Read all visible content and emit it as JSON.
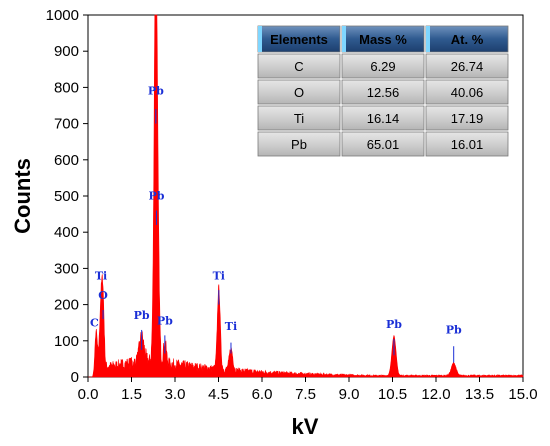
{
  "chart_data": {
    "type": "line",
    "xlabel": "kV",
    "ylabel": "Counts",
    "xlim": [
      0.0,
      15.0
    ],
    "ylim": [
      0,
      1000
    ],
    "xticks": [
      "0.0",
      "1.5",
      "3.0",
      "4.5",
      "6.0",
      "7.5",
      "9.0",
      "10.5",
      "12.0",
      "13.5",
      "15.0"
    ],
    "yticks": [
      "0",
      "100",
      "200",
      "300",
      "400",
      "500",
      "600",
      "700",
      "800",
      "900",
      "1000"
    ],
    "line_color": "#ff0000",
    "label_color": "#1a2fd6",
    "peaks": [
      {
        "x": 0.28,
        "y": 110,
        "width": 0.04
      },
      {
        "x": 0.45,
        "y": 180,
        "width": 0.05
      },
      {
        "x": 0.52,
        "y": 155,
        "width": 0.04
      },
      {
        "x": 1.85,
        "y": 70,
        "width": 0.08
      },
      {
        "x": 2.3,
        "y": 440,
        "width": 0.05
      },
      {
        "x": 2.34,
        "y": 735,
        "width": 0.04
      },
      {
        "x": 2.4,
        "y": 420,
        "width": 0.05
      },
      {
        "x": 2.65,
        "y": 60,
        "width": 0.05
      },
      {
        "x": 4.51,
        "y": 225,
        "width": 0.05
      },
      {
        "x": 4.93,
        "y": 60,
        "width": 0.06
      },
      {
        "x": 10.55,
        "y": 110,
        "width": 0.07
      },
      {
        "x": 12.61,
        "y": 35,
        "width": 0.08
      }
    ],
    "annotations": [
      {
        "text": "Pb",
        "x": 2.34,
        "y": 780,
        "line_top": 740,
        "line_bottom": 700
      },
      {
        "text": "Pb",
        "x": 2.36,
        "y": 490,
        "line_top": 460,
        "line_bottom": 420
      },
      {
        "text": "Ti",
        "x": 4.51,
        "y": 270,
        "line_top": 240,
        "line_bottom": 200
      },
      {
        "text": "Ti",
        "x": 0.45,
        "y": 270,
        "line_top": 0,
        "line_bottom": 0
      },
      {
        "text": "O",
        "x": 0.52,
        "y": 215,
        "line_top": 185,
        "line_bottom": 160
      },
      {
        "text": "C",
        "x": 0.22,
        "y": 140,
        "line_top": 0,
        "line_bottom": 0
      },
      {
        "text": "Pb",
        "x": 1.85,
        "y": 160,
        "line_top": 130,
        "line_bottom": 75
      },
      {
        "text": "Pb",
        "x": 2.65,
        "y": 145,
        "line_top": 115,
        "line_bottom": 65
      },
      {
        "text": "Ti",
        "x": 4.93,
        "y": 130,
        "line_top": 95,
        "line_bottom": 65
      },
      {
        "text": "Pb",
        "x": 10.55,
        "y": 135,
        "line_top": 105,
        "line_bottom": 60
      },
      {
        "text": "Pb",
        "x": 12.61,
        "y": 120,
        "line_top": 85,
        "line_bottom": 40
      }
    ]
  },
  "table": {
    "headers": [
      "Elements",
      "Mass %",
      "At. %"
    ],
    "rows": [
      [
        "C",
        "6.29",
        "26.74"
      ],
      [
        "O",
        "12.56",
        "40.06"
      ],
      [
        "Ti",
        "16.14",
        "17.19"
      ],
      [
        "Pb",
        "65.01",
        "16.01"
      ]
    ],
    "header_color": "#3b5f8a",
    "row_color": "#c8c8c8"
  }
}
